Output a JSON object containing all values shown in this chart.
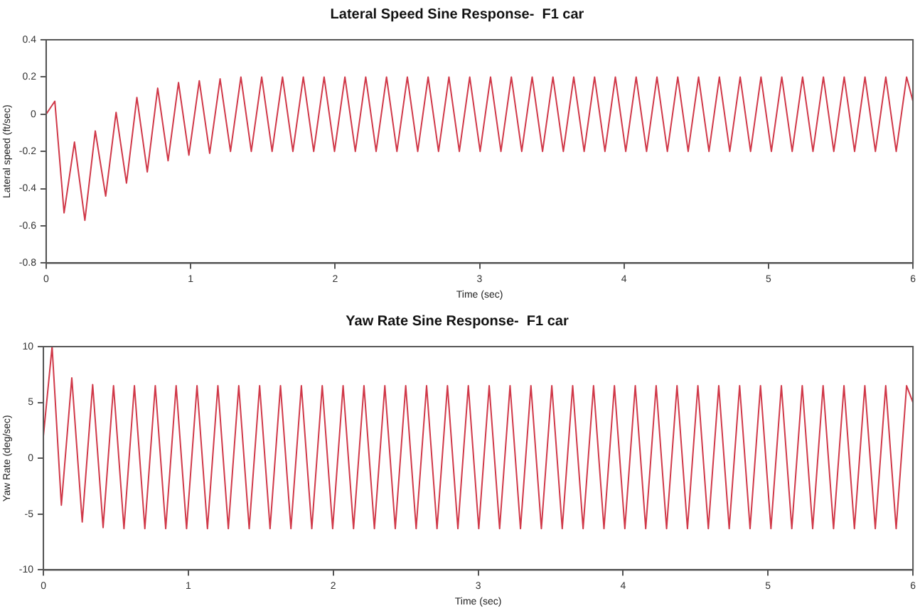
{
  "chart_data": [
    {
      "type": "line",
      "title": "Lateral Speed Sine Response-  F1 car",
      "xlabel": "Time (sec)",
      "ylabel": "Lateral speed (ft/sec)",
      "x": [
        0,
        0.06,
        0.124,
        0.196,
        0.268,
        0.34,
        0.412,
        0.484,
        0.556,
        0.628,
        0.7,
        0.772,
        0.844,
        0.916,
        0.988,
        1.06,
        1.132,
        1.204,
        1.276,
        1.348,
        1.42,
        1.492,
        1.564,
        1.636,
        1.708,
        1.78,
        1.852,
        1.924,
        1.996,
        2.068,
        2.14,
        2.212,
        2.284,
        2.356,
        2.428,
        2.5,
        2.572,
        2.644,
        2.716,
        2.788,
        2.86,
        2.932,
        3.004,
        3.076,
        3.148,
        3.22,
        3.292,
        3.364,
        3.436,
        3.508,
        3.58,
        3.652,
        3.724,
        3.796,
        3.868,
        3.94,
        4.012,
        4.084,
        4.156,
        4.228,
        4.3,
        4.372,
        4.444,
        4.516,
        4.588,
        4.66,
        4.732,
        4.804,
        4.876,
        4.948,
        5.02,
        5.092,
        5.164,
        5.236,
        5.308,
        5.38,
        5.452,
        5.524,
        5.596,
        5.668,
        5.74,
        5.812,
        5.884,
        5.956,
        6
      ],
      "series": [
        {
          "color": "#d03848",
          "values": [
            0,
            0.07,
            -0.53,
            -0.15,
            -0.57,
            -0.09,
            -0.44,
            0.01,
            -0.37,
            0.09,
            -0.31,
            0.14,
            -0.25,
            0.17,
            -0.22,
            0.18,
            -0.21,
            0.19,
            -0.2,
            0.2,
            -0.2,
            0.2,
            -0.2,
            0.2,
            -0.2,
            0.2,
            -0.2,
            0.2,
            -0.2,
            0.2,
            -0.2,
            0.2,
            -0.2,
            0.2,
            -0.2,
            0.2,
            -0.2,
            0.2,
            -0.2,
            0.2,
            -0.2,
            0.2,
            -0.2,
            0.2,
            -0.2,
            0.2,
            -0.2,
            0.2,
            -0.2,
            0.2,
            -0.2,
            0.2,
            -0.2,
            0.2,
            -0.2,
            0.2,
            -0.2,
            0.2,
            -0.2,
            0.2,
            -0.2,
            0.2,
            -0.2,
            0.2,
            -0.2,
            0.2,
            -0.2,
            0.2,
            -0.2,
            0.2,
            -0.2,
            0.2,
            -0.2,
            0.2,
            -0.2,
            0.2,
            -0.2,
            0.2,
            -0.2,
            0.2,
            -0.2,
            0.2,
            -0.2,
            0.2,
            0.07
          ]
        }
      ],
      "xlim": [
        0,
        6
      ],
      "xticks": [
        0,
        1,
        2,
        3,
        4,
        5,
        6
      ],
      "ylim": [
        -0.8,
        0.4
      ],
      "yticks": [
        -0.8,
        -0.6,
        -0.4,
        -0.2,
        0,
        0.2,
        0.4
      ],
      "grid": false,
      "legend": false,
      "marker": "none",
      "line_style": "solid"
    },
    {
      "type": "line",
      "title": "Yaw Rate Sine Response-  F1 car",
      "xlabel": "Time (sec)",
      "ylabel": "Yaw Rate (deg/sec)",
      "x": [
        0,
        0.06,
        0.124,
        0.196,
        0.268,
        0.34,
        0.412,
        0.484,
        0.556,
        0.628,
        0.7,
        0.772,
        0.844,
        0.916,
        0.988,
        1.06,
        1.132,
        1.204,
        1.276,
        1.348,
        1.42,
        1.492,
        1.564,
        1.636,
        1.708,
        1.78,
        1.852,
        1.924,
        1.996,
        2.068,
        2.14,
        2.212,
        2.284,
        2.356,
        2.428,
        2.5,
        2.572,
        2.644,
        2.716,
        2.788,
        2.86,
        2.932,
        3.004,
        3.076,
        3.148,
        3.22,
        3.292,
        3.364,
        3.436,
        3.508,
        3.58,
        3.652,
        3.724,
        3.796,
        3.868,
        3.94,
        4.012,
        4.084,
        4.156,
        4.228,
        4.3,
        4.372,
        4.444,
        4.516,
        4.588,
        4.66,
        4.732,
        4.804,
        4.876,
        4.948,
        5.02,
        5.092,
        5.164,
        5.236,
        5.308,
        5.38,
        5.452,
        5.524,
        5.596,
        5.668,
        5.74,
        5.812,
        5.884,
        5.956,
        6
      ],
      "series": [
        {
          "color": "#d03848",
          "values": [
            2,
            10,
            -4.2,
            7.2,
            -5.7,
            6.6,
            -6.2,
            6.5,
            -6.3,
            6.5,
            -6.3,
            6.5,
            -6.3,
            6.5,
            -6.3,
            6.5,
            -6.3,
            6.5,
            -6.3,
            6.5,
            -6.3,
            6.5,
            -6.3,
            6.5,
            -6.3,
            6.5,
            -6.3,
            6.5,
            -6.3,
            6.5,
            -6.3,
            6.5,
            -6.3,
            6.5,
            -6.3,
            6.5,
            -6.3,
            6.5,
            -6.3,
            6.5,
            -6.3,
            6.5,
            -6.3,
            6.5,
            -6.3,
            6.5,
            -6.3,
            6.5,
            -6.3,
            6.5,
            -6.3,
            6.5,
            -6.3,
            6.5,
            -6.3,
            6.5,
            -6.3,
            6.5,
            -6.3,
            6.5,
            -6.3,
            6.5,
            -6.3,
            6.5,
            -6.3,
            6.5,
            -6.3,
            6.5,
            -6.3,
            6.5,
            -6.3,
            6.5,
            -6.3,
            6.5,
            -6.3,
            6.5,
            -6.3,
            6.5,
            -6.3,
            6.5,
            -6.3,
            6.5,
            -6.3,
            6.5,
            5
          ]
        }
      ],
      "xlim": [
        0,
        6
      ],
      "xticks": [
        0,
        1,
        2,
        3,
        4,
        5,
        6
      ],
      "ylim": [
        -10,
        10
      ],
      "yticks": [
        -10,
        -5,
        0,
        5,
        10
      ],
      "grid": false,
      "legend": false,
      "marker": "none",
      "line_style": "solid"
    }
  ]
}
